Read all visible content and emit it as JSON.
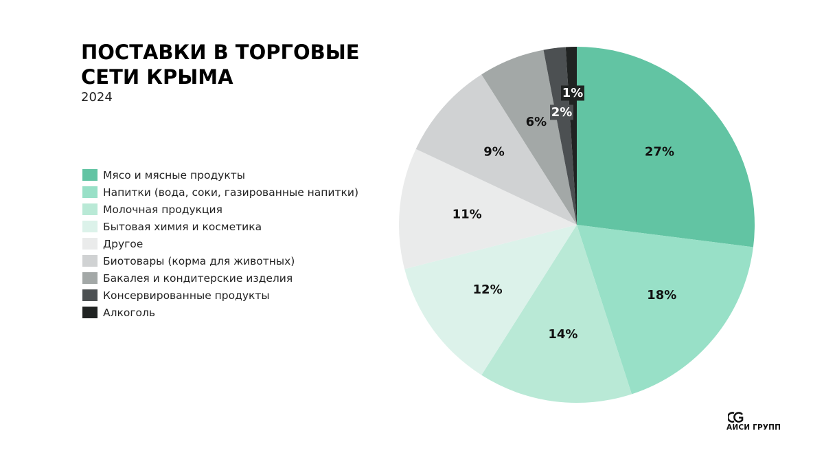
{
  "header": {
    "title": "ПОСТАВКИ В ТОРГОВЫЕ СЕТИ КРЫМА",
    "subtitle": "2024"
  },
  "logo": {
    "text": "АИСИ ГРУПП",
    "icon": "aisi-group-logo-icon"
  },
  "chart_data": {
    "type": "pie",
    "title": "ПОСТАВКИ В ТОРГОВЫЕ СЕТИ КРЫМА",
    "subtitle": "2024",
    "legend_placement": "left",
    "start_angle_deg": 0,
    "direction": "clockwise",
    "slices": [
      {
        "label": "Мясо и мясные продукты",
        "value": 27,
        "display": "27%",
        "color": "#62c4a3",
        "text_color": "#111111"
      },
      {
        "label": "Напитки (вода, соки, газированные напитки)",
        "value": 18,
        "display": "18%",
        "color": "#98e0c7",
        "text_color": "#111111"
      },
      {
        "label": "Молочная продукция",
        "value": 14,
        "display": "14%",
        "color": "#b9e9d6",
        "text_color": "#111111"
      },
      {
        "label": "Бытовая химия и косметика",
        "value": 12,
        "display": "12%",
        "color": "#dcf2ea",
        "text_color": "#111111"
      },
      {
        "label": "Другое",
        "value": 11,
        "display": "11%",
        "color": "#eaebeb",
        "text_color": "#111111"
      },
      {
        "label": "Биотовары (корма для животных)",
        "value": 9,
        "display": "9%",
        "color": "#d0d2d3",
        "text_color": "#111111"
      },
      {
        "label": "Бакалея и кондитерские изделия",
        "value": 6,
        "display": "6%",
        "color": "#a3a8a7",
        "text_color": "#111111"
      },
      {
        "label": "Консервированные продукты",
        "value": 2,
        "display": "2%",
        "color": "#4c5052",
        "text_color": "#ffffff"
      },
      {
        "label": "Алкоголь",
        "value": 1,
        "display": "1%",
        "color": "#202322",
        "text_color": "#ffffff"
      }
    ]
  }
}
